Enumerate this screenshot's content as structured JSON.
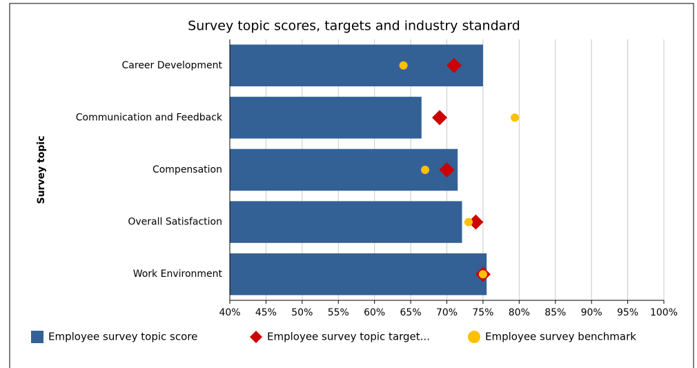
{
  "chart_data": {
    "type": "bar",
    "orientation": "horizontal",
    "title": "Survey topic scores, targets and industry standard",
    "y_label": "Survey topic",
    "categories": [
      "Career Development",
      "Communication and Feedback",
      "Compensation",
      "Overall Satisfaction",
      "Work Environment"
    ],
    "series": [
      {
        "name": "Employee survey topic score",
        "color": "#336195",
        "marker": "bar",
        "values": [
          75,
          66.5,
          71.5,
          72.1,
          75.5
        ]
      },
      {
        "name": "Employee survey topic target...",
        "color": "#cc0000",
        "marker": "diamond",
        "values": [
          71,
          69,
          70,
          74,
          75
        ]
      },
      {
        "name": "Employee survey benchmark",
        "color": "#ffc000",
        "marker": "circle",
        "values": [
          64,
          79.4,
          67,
          73,
          75
        ]
      }
    ],
    "xlim": [
      40,
      100
    ],
    "xticks": [
      {
        "value": 40,
        "label": "40%"
      },
      {
        "value": 45,
        "label": "45%"
      },
      {
        "value": 50,
        "label": "50%"
      },
      {
        "value": 55,
        "label": "55%"
      },
      {
        "value": 60,
        "label": "60%"
      },
      {
        "value": 65,
        "label": "65%"
      },
      {
        "value": 70,
        "label": "70%"
      },
      {
        "value": 75,
        "label": "75%"
      },
      {
        "value": 80,
        "label": "80%"
      },
      {
        "value": 85,
        "label": "85%"
      },
      {
        "value": 90,
        "label": "90%"
      },
      {
        "value": 95,
        "label": "95%"
      },
      {
        "value": 100,
        "label": "100%"
      }
    ],
    "grid": true,
    "legend": "bottom"
  }
}
